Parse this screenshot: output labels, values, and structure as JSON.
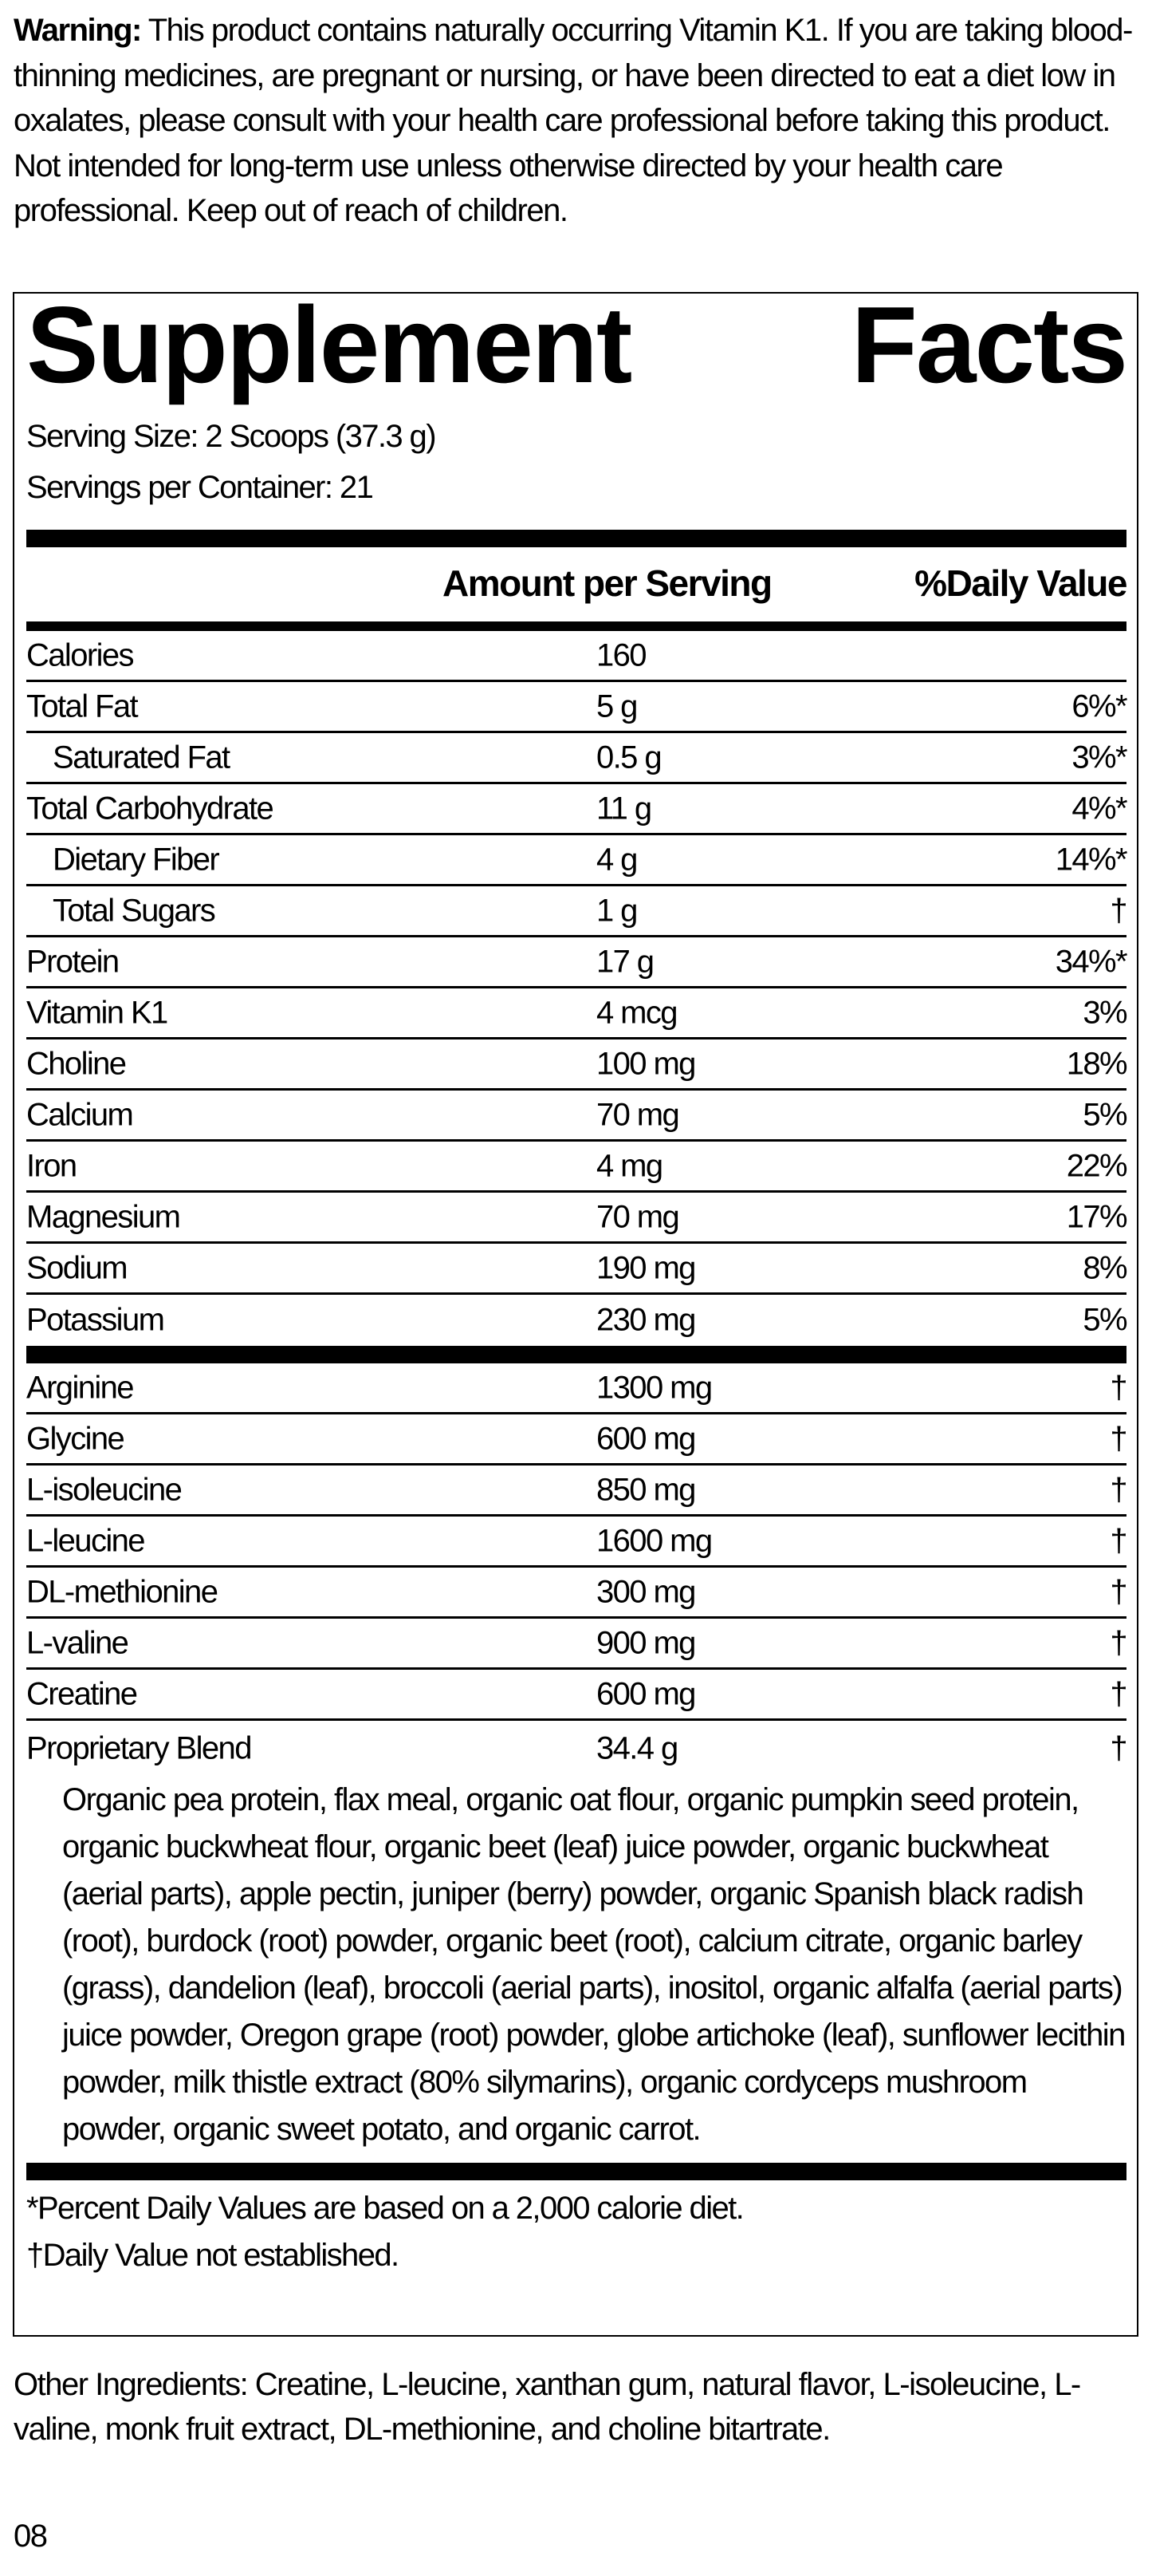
{
  "warning": {
    "label": "Warning:",
    "text": " This product contains naturally occurring Vitamin K1. If you are taking blood-thinning medicines, are pregnant or nursing, or have been directed to eat a diet low in oxalates, please consult with your health care professional before taking this product. Not intended for long-term use unless otherwise directed by your health care professional. Keep out of reach of children."
  },
  "facts": {
    "title_word1": "Supplement",
    "title_word2": "Facts",
    "serving_size": "Serving Size: 2 Scoops (37.3 g)",
    "servings_per_container": "Servings per Container: 21",
    "header_amount": "Amount per Serving",
    "header_dv": "%Daily Value",
    "nutrients": [
      {
        "name": "Calories",
        "amount": "160",
        "dv": ""
      },
      {
        "name": "Total Fat",
        "amount": "5 g",
        "dv": "6%*"
      },
      {
        "name": "Saturated Fat",
        "amount": "0.5 g",
        "dv": "3%*",
        "indent": true
      },
      {
        "name": "Total Carbohydrate",
        "amount": "11 g",
        "dv": "4%*"
      },
      {
        "name": "Dietary Fiber",
        "amount": "4 g",
        "dv": "14%*",
        "indent": true
      },
      {
        "name": "Total Sugars",
        "amount": "1 g",
        "dv": "†",
        "indent": true
      },
      {
        "name": "Protein",
        "amount": "17 g",
        "dv": "34%*"
      },
      {
        "name": "Vitamin K1",
        "amount": "4 mcg",
        "dv": "3%"
      },
      {
        "name": "Choline",
        "amount": "100 mg",
        "dv": "18%"
      },
      {
        "name": "Calcium",
        "amount": "70 mg",
        "dv": "5%"
      },
      {
        "name": "Iron",
        "amount": "4 mg",
        "dv": "22%"
      },
      {
        "name": "Magnesium",
        "amount": "70 mg",
        "dv": "17%"
      },
      {
        "name": "Sodium",
        "amount": "190 mg",
        "dv": "8%"
      },
      {
        "name": "Potassium",
        "amount": "230 mg",
        "dv": "5%"
      }
    ],
    "other_nutrients": [
      {
        "name": "Arginine",
        "amount": "1300 mg",
        "dv": "†"
      },
      {
        "name": "Glycine",
        "amount": "600 mg",
        "dv": "†"
      },
      {
        "name": "L-isoleucine",
        "amount": "850 mg",
        "dv": "†"
      },
      {
        "name": "L-leucine",
        "amount": "1600 mg",
        "dv": "†"
      },
      {
        "name": "DL-methionine",
        "amount": "300 mg",
        "dv": "†"
      },
      {
        "name": "L-valine",
        "amount": "900 mg",
        "dv": "†"
      },
      {
        "name": "Creatine",
        "amount": "600 mg",
        "dv": "†"
      }
    ],
    "blend": {
      "name": "Proprietary Blend",
      "amount": "34.4 g",
      "dv": "†",
      "ingredients": "Organic pea protein, flax meal, organic oat flour, organic pumpkin seed protein, organic buckwheat flour, organic beet (leaf) juice powder, organic buckwheat (aerial parts), apple pectin, juniper (berry) powder, organic Spanish black radish (root), burdock (root) powder, organic beet (root), calcium citrate, organic barley (grass), dandelion (leaf), broccoli (aerial parts), inositol, organic alfalfa (aerial parts) juice powder, Oregon grape (root) powder, globe artichoke (leaf), sunflower lecithin powder, milk thistle extract (80% silymarins), organic cordyceps mushroom powder, organic sweet potato, and organic carrot."
    },
    "footnote_dv": "*Percent Daily Values are based on a 2,000 calorie diet.",
    "footnote_dagger": "†Daily Value not established."
  },
  "other_ingredients": "Other Ingredients: Creatine, L-leucine, xanthan gum, natural flavor, L-isoleucine, L-valine, monk fruit extract, DL-methionine, and choline bitartrate.",
  "code": "08"
}
